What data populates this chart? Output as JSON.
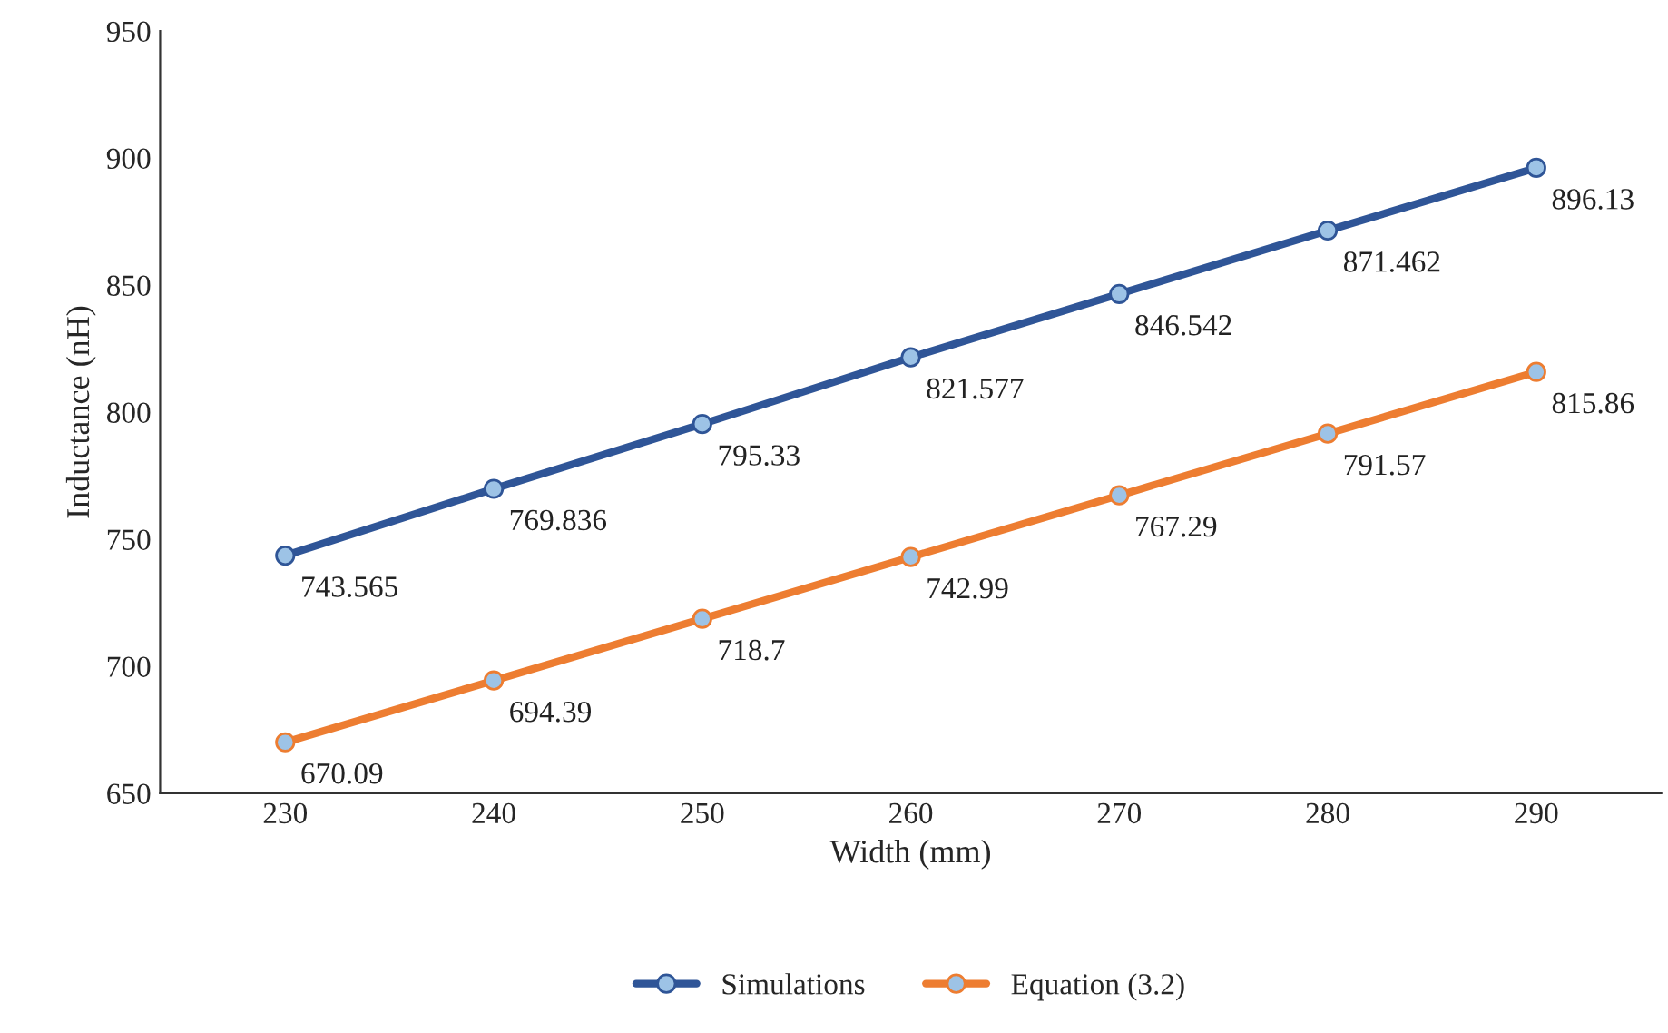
{
  "chart_data": {
    "type": "line",
    "xlabel": "Width (mm)",
    "ylabel": "Inductance (nH)",
    "categories": [
      "230",
      "240",
      "250",
      "260",
      "270",
      "280",
      "290"
    ],
    "series": [
      {
        "name": "Simulations",
        "color": "#2f5597",
        "values": [
          743.565,
          769.836,
          795.33,
          821.577,
          846.542,
          871.462,
          896.13
        ]
      },
      {
        "name": "Equation (3.2)",
        "color": "#ed7d31",
        "values": [
          670.09,
          694.39,
          718.7,
          742.99,
          767.29,
          791.57,
          815.86
        ]
      }
    ],
    "ylim": [
      650,
      950
    ],
    "yticks": [
      650,
      700,
      750,
      800,
      850,
      900,
      950
    ],
    "grid": false,
    "legend": "bottom",
    "marker": "circle",
    "line_style": "solid",
    "data_labels": true
  }
}
